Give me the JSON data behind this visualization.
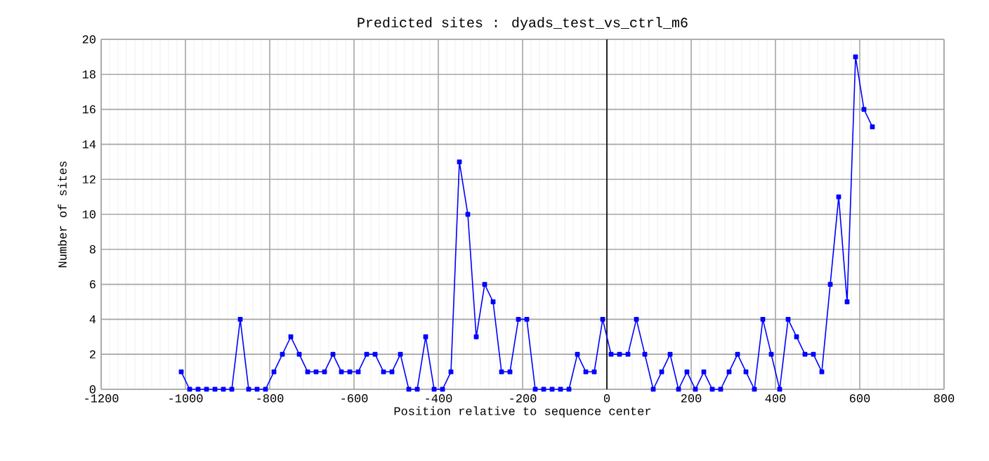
{
  "chart_data": {
    "type": "line",
    "title": "Predicted sites : dyads_test_vs_ctrl_m6",
    "xlabel": "Position relative to sequence center",
    "ylabel": "Number of sites",
    "x": [
      -1010,
      -990,
      -970,
      -950,
      -930,
      -910,
      -890,
      -870,
      -850,
      -830,
      -810,
      -790,
      -770,
      -750,
      -730,
      -710,
      -690,
      -670,
      -650,
      -630,
      -610,
      -590,
      -570,
      -550,
      -530,
      -510,
      -490,
      -470,
      -450,
      -430,
      -410,
      -390,
      -370,
      -350,
      -330,
      -310,
      -290,
      -270,
      -250,
      -230,
      -210,
      -190,
      -170,
      -150,
      -130,
      -110,
      -90,
      -70,
      -50,
      -30,
      -10,
      10,
      30,
      50,
      70,
      90,
      110,
      130,
      150,
      170,
      190,
      210,
      230,
      250,
      270,
      290,
      310,
      330,
      350,
      370,
      390,
      410,
      430,
      450,
      470,
      490,
      510,
      530,
      550,
      570,
      590,
      610,
      630
    ],
    "series": [
      {
        "color": "#0000ff",
        "values": [
          1,
          0,
          0,
          0,
          0,
          0,
          0,
          4,
          0,
          0,
          0,
          1,
          2,
          3,
          2,
          1,
          1,
          1,
          2,
          1,
          1,
          1,
          2,
          2,
          1,
          1,
          2,
          0,
          0,
          3,
          0,
          0,
          1,
          13,
          10,
          3,
          6,
          5,
          1,
          1,
          4,
          4,
          0,
          0,
          0,
          0,
          0,
          2,
          1,
          1,
          4,
          2,
          2,
          2,
          4,
          2,
          0,
          1,
          2,
          0,
          1,
          0,
          1,
          0,
          0,
          1,
          2,
          1,
          0,
          4,
          2,
          0,
          4,
          3,
          2,
          2,
          1,
          6,
          11,
          5,
          19,
          16,
          15
        ]
      }
    ],
    "xlim": [
      -1200,
      800
    ],
    "xticks": [
      -1200,
      -1000,
      -800,
      -600,
      -400,
      -200,
      0,
      200,
      400,
      600,
      800
    ],
    "ylim": [
      0,
      20
    ],
    "yticks": [
      0,
      2,
      4,
      6,
      8,
      10,
      12,
      14,
      16,
      18,
      20
    ],
    "ref_lines": [
      {
        "axis": "x",
        "value": 0,
        "color": "#000000"
      }
    ],
    "grid": true,
    "marker": "square",
    "line_style": "solid"
  }
}
